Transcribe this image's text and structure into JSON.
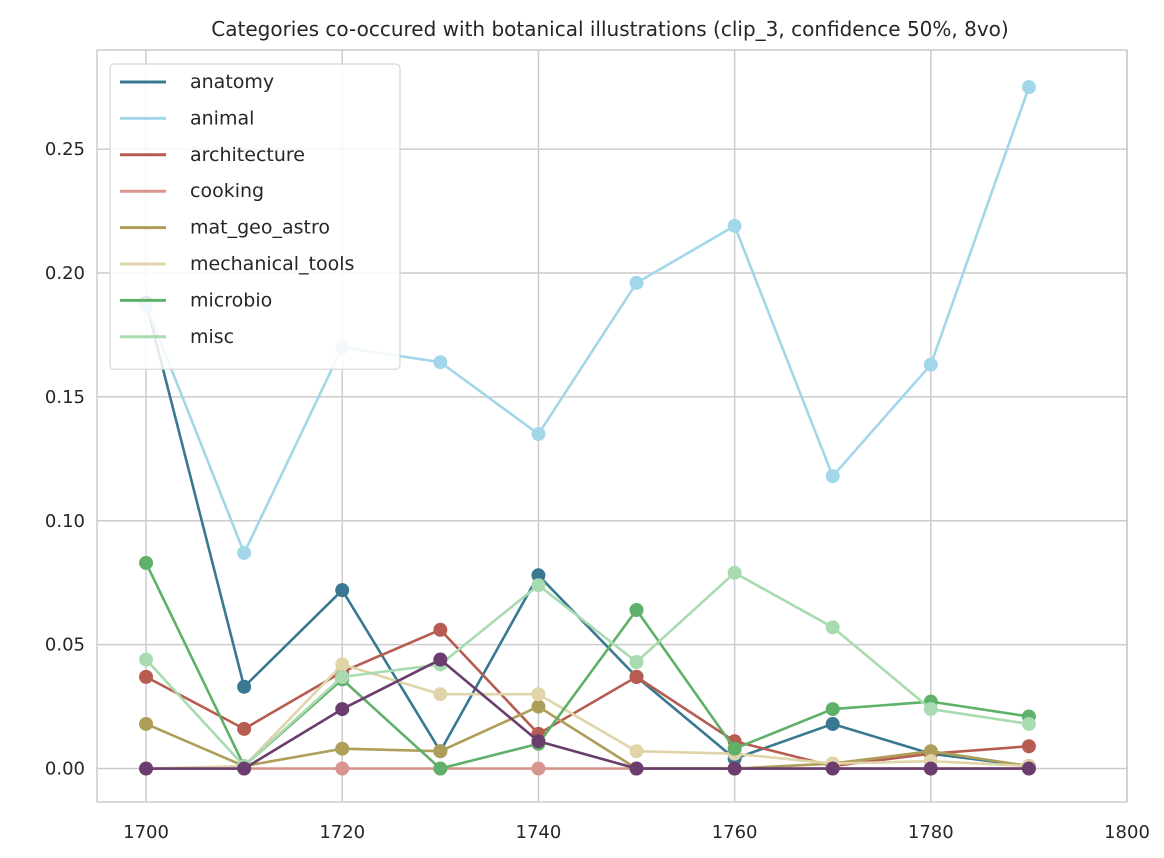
{
  "chart_data": {
    "type": "line",
    "title": "Categories co-occured with botanical illustrations (clip_3, confidence 50%, 8vo)",
    "xlabel": "",
    "ylabel": "",
    "xlim": [
      1695,
      1800
    ],
    "ylim": [
      -0.0135,
      0.29
    ],
    "xticks": [
      1700,
      1720,
      1740,
      1760,
      1780,
      1800
    ],
    "xtick_labels": [
      "1700",
      "1720",
      "1740",
      "1760",
      "1780",
      "1800"
    ],
    "yticks": [
      0.0,
      0.05,
      0.1,
      0.15,
      0.2,
      0.25
    ],
    "ytick_labels": [
      "0.00",
      "0.05",
      "0.10",
      "0.15",
      "0.20",
      "0.25"
    ],
    "grid": true,
    "legend_position": "top-left",
    "markers": true,
    "x": [
      1700,
      1710,
      1720,
      1730,
      1740,
      1750,
      1760,
      1770,
      1780,
      1790
    ],
    "series": [
      {
        "name": "anatomy",
        "color": "#3a7891",
        "values": [
          0.188,
          0.033,
          0.072,
          0.007,
          0.078,
          0.037,
          0.004,
          0.018,
          0.006,
          0.001
        ]
      },
      {
        "name": "animal",
        "color": "#a2d7ea",
        "values": [
          0.187,
          0.087,
          0.17,
          0.164,
          0.135,
          0.196,
          0.219,
          0.118,
          0.163,
          0.275
        ]
      },
      {
        "name": "architecture",
        "color": "#b65c50",
        "values": [
          0.037,
          0.016,
          0.039,
          0.056,
          0.014,
          0.037,
          0.011,
          0.001,
          0.006,
          0.009
        ]
      },
      {
        "name": "cooking",
        "color": "#d8958f",
        "values": [
          0.0,
          0.0,
          0.0,
          0.0,
          0.0,
          0.0,
          0.0,
          0.0,
          0.0,
          0.0
        ]
      },
      {
        "name": "mat_geo_astro",
        "color": "#ad9e5a",
        "values": [
          0.018,
          0.001,
          0.008,
          0.007,
          0.025,
          0.0,
          0.0,
          0.002,
          0.007,
          0.001
        ]
      },
      {
        "name": "mechanical_tools",
        "color": "#e0d5a8",
        "values": [
          0.0,
          0.001,
          0.042,
          0.03,
          0.03,
          0.007,
          0.006,
          0.002,
          0.003,
          0.001
        ]
      },
      {
        "name": "microbio",
        "color": "#5fb069",
        "values": [
          0.083,
          0.001,
          0.036,
          0.0,
          0.01,
          0.064,
          0.008,
          0.024,
          0.027,
          0.021
        ]
      },
      {
        "name": "misc",
        "color": "#a9dbb0",
        "values": [
          0.044,
          0.001,
          0.037,
          0.042,
          0.074,
          0.043,
          0.079,
          0.057,
          0.024,
          0.018
        ]
      },
      {
        "name": "",
        "color": "#6a3d6e",
        "values": [
          0.0,
          0.0,
          0.024,
          0.044,
          0.011,
          0.0,
          0.0,
          0.0,
          0.0,
          0.0
        ]
      }
    ]
  }
}
